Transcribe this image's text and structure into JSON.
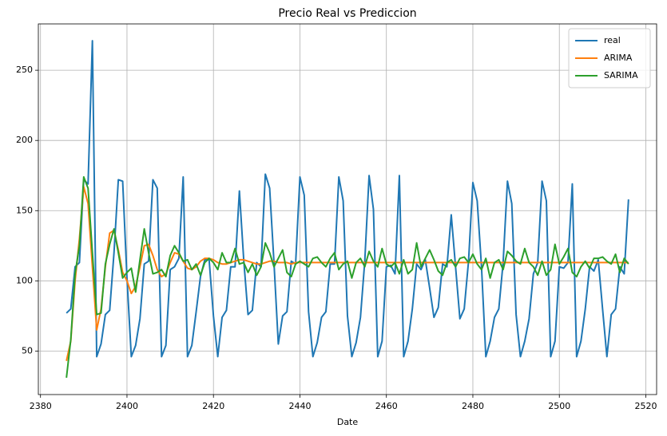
{
  "chart_data": {
    "type": "line",
    "title": "Precio Real vs Prediccion",
    "x_label": "Date",
    "x": [
      2386,
      2387,
      2388,
      2389,
      2390,
      2391,
      2392,
      2393,
      2394,
      2395,
      2396,
      2397,
      2398,
      2399,
      2400,
      2401,
      2402,
      2403,
      2404,
      2405,
      2406,
      2407,
      2408,
      2409,
      2410,
      2411,
      2412,
      2413,
      2414,
      2415,
      2416,
      2417,
      2418,
      2419,
      2420,
      2421,
      2422,
      2423,
      2424,
      2425,
      2426,
      2427,
      2428,
      2429,
      2430,
      2431,
      2432,
      2433,
      2434,
      2435,
      2436,
      2437,
      2438,
      2439,
      2440,
      2441,
      2442,
      2443,
      2444,
      2445,
      2446,
      2447,
      2448,
      2449,
      2450,
      2451,
      2452,
      2453,
      2454,
      2455,
      2456,
      2457,
      2458,
      2459,
      2460,
      2461,
      2462,
      2463,
      2464,
      2465,
      2466,
      2467,
      2468,
      2469,
      2470,
      2471,
      2472,
      2473,
      2474,
      2475,
      2476,
      2477,
      2478,
      2479,
      2480,
      2481,
      2482,
      2483,
      2484,
      2485,
      2486,
      2487,
      2488,
      2489,
      2490,
      2491,
      2492,
      2493,
      2494,
      2495,
      2496,
      2497,
      2498,
      2499,
      2500,
      2501,
      2502,
      2503,
      2504,
      2505,
      2506,
      2507,
      2508,
      2509,
      2510,
      2511,
      2512,
      2513,
      2514,
      2515,
      2516
    ],
    "series": [
      {
        "name": "real",
        "color": "#1f77b4",
        "values": [
          77,
          80,
          110,
          113,
          172,
          169,
          271,
          46,
          55,
          76,
          79,
          120,
          172,
          171,
          102,
          46,
          54,
          73,
          112,
          114,
          172,
          166,
          46,
          54,
          108,
          110,
          116,
          174,
          46,
          54,
          78,
          103,
          115,
          115,
          75,
          46,
          74,
          79,
          110,
          110,
          164,
          115,
          76,
          79,
          113,
          110,
          176,
          166,
          113,
          55,
          75,
          78,
          114,
          112,
          174,
          161,
          78,
          46,
          56,
          74,
          78,
          112,
          112,
          174,
          157,
          75,
          46,
          56,
          74,
          114,
          175,
          151,
          46,
          57,
          110,
          111,
          105,
          175,
          46,
          57,
          80,
          112,
          108,
          115,
          95,
          74,
          81,
          112,
          110,
          147,
          110,
          73,
          80,
          114,
          170,
          157,
          110,
          46,
          57,
          74,
          80,
          113,
          171,
          155,
          76,
          46,
          57,
          73,
          105,
          113,
          171,
          157,
          46,
          57,
          110,
          109,
          113,
          169,
          46,
          57,
          80,
          110,
          107,
          115,
          80,
          46,
          76,
          80,
          110,
          105,
          158
        ]
      },
      {
        "name": "ARIMA",
        "color": "#ff7f0e",
        "values": [
          43,
          57,
          100,
          130,
          167,
          155,
          110,
          65,
          80,
          110,
          134,
          136,
          122,
          106,
          100,
          91,
          96,
          110,
          125,
          126,
          118,
          108,
          103,
          105,
          113,
          120,
          119,
          114,
          109,
          108,
          110,
          114,
          116,
          116,
          115,
          113,
          112,
          112,
          113,
          114,
          115,
          115,
          114,
          113,
          112,
          112,
          113,
          114,
          114,
          113,
          113,
          113,
          112,
          113,
          113,
          113,
          113,
          113,
          113,
          113,
          113,
          113,
          113,
          113,
          113,
          113,
          113,
          113,
          113,
          113,
          113,
          113,
          113,
          113,
          113,
          113,
          113,
          113,
          113,
          113,
          113,
          113,
          113,
          113,
          113,
          113,
          113,
          113,
          113,
          113,
          113,
          113,
          113,
          113,
          113,
          113,
          113,
          113,
          113,
          113,
          113,
          113,
          113,
          113,
          113,
          113,
          113,
          113,
          113,
          113,
          113,
          113,
          113,
          113,
          113,
          113,
          113,
          113,
          113,
          113,
          113,
          113,
          113,
          113,
          113,
          113,
          113,
          113,
          113,
          113,
          113
        ]
      },
      {
        "name": "SARIMA",
        "color": "#2ca02c",
        "values": [
          31,
          58,
          105,
          125,
          174,
          166,
          120,
          76,
          77,
          112,
          126,
          137,
          120,
          102,
          106,
          109,
          92,
          115,
          137,
          120,
          105,
          106,
          108,
          103,
          118,
          125,
          120,
          114,
          115,
          108,
          112,
          104,
          113,
          116,
          113,
          108,
          120,
          113,
          113,
          123,
          112,
          113,
          106,
          112,
          104,
          110,
          127,
          120,
          110,
          116,
          122,
          106,
          103,
          112,
          114,
          112,
          110,
          116,
          117,
          113,
          110,
          116,
          120,
          108,
          112,
          114,
          102,
          113,
          116,
          110,
          121,
          114,
          110,
          123,
          112,
          110,
          113,
          105,
          115,
          105,
          108,
          127,
          110,
          116,
          122,
          115,
          107,
          104,
          113,
          115,
          110,
          116,
          117,
          113,
          119,
          112,
          108,
          116,
          102,
          113,
          115,
          108,
          121,
          118,
          114,
          112,
          123,
          113,
          110,
          104,
          114,
          104,
          108,
          126,
          112,
          117,
          123,
          106,
          103,
          110,
          114,
          109,
          116,
          116,
          117,
          114,
          112,
          119,
          106,
          116,
          112
        ]
      }
    ],
    "xlim": [
      2379.5,
      2522.5
    ],
    "xticks": [
      2380,
      2400,
      2420,
      2440,
      2460,
      2480,
      2500,
      2520
    ],
    "ylim": [
      19,
      283
    ],
    "yticks": [
      50,
      100,
      150,
      200,
      250
    ],
    "grid": true,
    "legend": "upper right"
  }
}
